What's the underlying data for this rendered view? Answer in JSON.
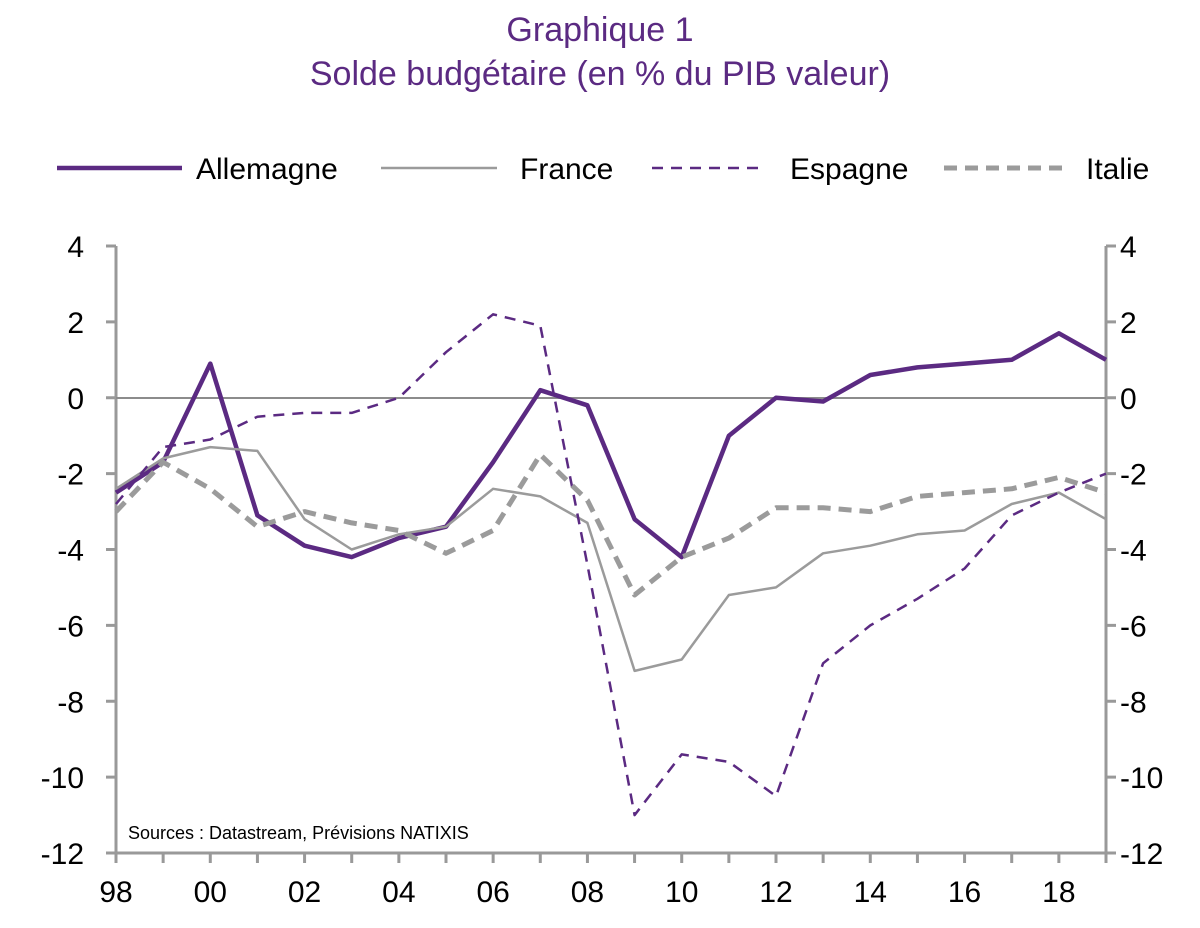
{
  "chart_data": {
    "type": "line",
    "title": "Graphique 1",
    "subtitle": "Solde budgétaire (en % du PIB valeur)",
    "source": "Sources : Datastream, Prévisions NATIXIS",
    "x": [
      1998,
      1999,
      2000,
      2001,
      2002,
      2003,
      2004,
      2005,
      2006,
      2007,
      2008,
      2009,
      2010,
      2011,
      2012,
      2013,
      2014,
      2015,
      2016,
      2017,
      2018,
      2019
    ],
    "x_tick_values": [
      1998,
      2000,
      2002,
      2004,
      2006,
      2008,
      2010,
      2012,
      2014,
      2016,
      2018
    ],
    "x_tick_labels": [
      "98",
      "00",
      "02",
      "04",
      "06",
      "08",
      "10",
      "12",
      "14",
      "16",
      "18"
    ],
    "xlim": [
      1998,
      2019
    ],
    "ylim": [
      -12,
      4
    ],
    "y_ticks": [
      4,
      2,
      0,
      -2,
      -4,
      -6,
      -8,
      -10,
      -12
    ],
    "y_tick_labels": [
      "4",
      "2",
      "0",
      "-2",
      "-4",
      "-6",
      "-8",
      "-10",
      "-12"
    ],
    "legend_position": "top",
    "series": [
      {
        "key": "allemagne",
        "name": "Allemagne",
        "color": "#5b2a82",
        "style": "solid-thick",
        "values": [
          -2.5,
          -1.7,
          0.9,
          -3.1,
          -3.9,
          -4.2,
          -3.7,
          -3.4,
          -1.7,
          0.2,
          -0.2,
          -3.2,
          -4.2,
          -1.0,
          0.0,
          -0.1,
          0.6,
          0.8,
          0.9,
          1.0,
          1.7,
          1.0
        ]
      },
      {
        "key": "france",
        "name": "France",
        "color": "#9b9b9b",
        "style": "solid-thin",
        "values": [
          -2.4,
          -1.6,
          -1.3,
          -1.4,
          -3.2,
          -4.0,
          -3.6,
          -3.4,
          -2.4,
          -2.6,
          -3.3,
          -7.2,
          -6.9,
          -5.2,
          -5.0,
          -4.1,
          -3.9,
          -3.6,
          -3.5,
          -2.8,
          -2.5,
          -3.2
        ]
      },
      {
        "key": "espagne",
        "name": "Espagne",
        "color": "#5b2a82",
        "style": "dashed-thin",
        "values": [
          -2.8,
          -1.3,
          -1.1,
          -0.5,
          -0.4,
          -0.4,
          0.0,
          1.2,
          2.2,
          1.9,
          -4.4,
          -11.0,
          -9.4,
          -9.6,
          -10.5,
          -7.0,
          -6.0,
          -5.3,
          -4.5,
          -3.1,
          -2.5,
          -2.0
        ]
      },
      {
        "key": "italie",
        "name": "Italie",
        "color": "#9b9b9b",
        "style": "dashed-thick",
        "values": [
          -3.0,
          -1.7,
          -2.4,
          -3.4,
          -3.0,
          -3.3,
          -3.5,
          -4.1,
          -3.5,
          -1.5,
          -2.7,
          -5.2,
          -4.2,
          -3.7,
          -2.9,
          -2.9,
          -3.0,
          -2.6,
          -2.5,
          -2.4,
          -2.1,
          -2.5
        ]
      }
    ]
  }
}
